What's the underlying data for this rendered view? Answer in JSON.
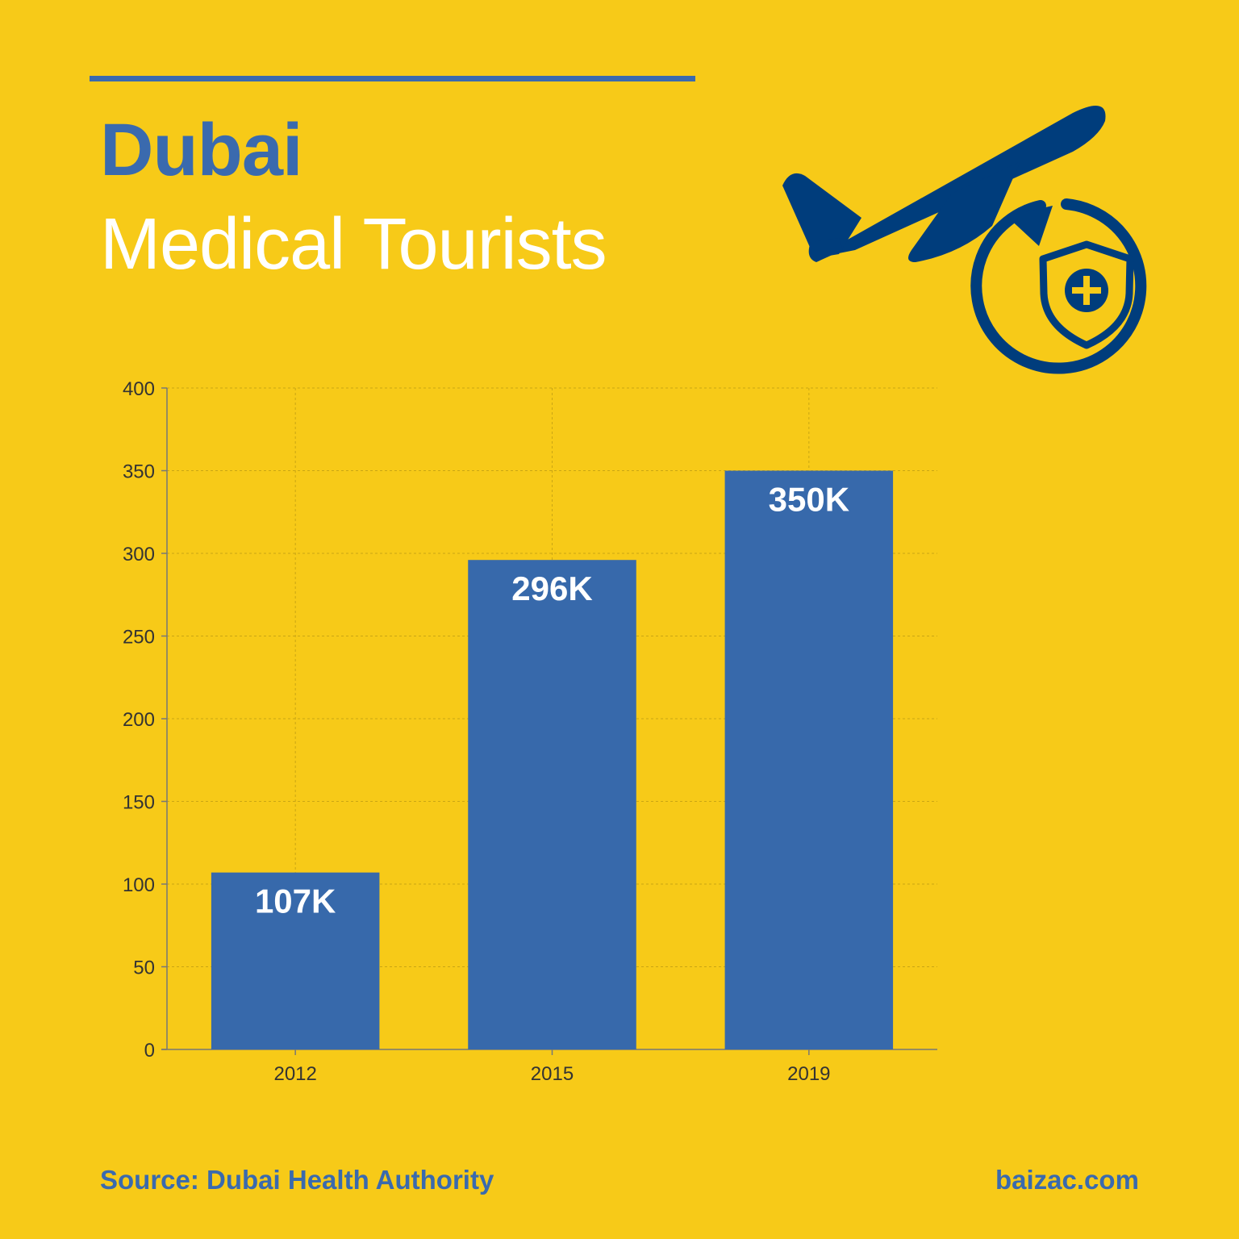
{
  "header": {
    "title": "Dubai",
    "subtitle": "Medical Tourists"
  },
  "footer": {
    "source": "Source: Dubai Health Authority",
    "site": "baizac.com"
  },
  "icons": {
    "plane": "airplane-icon",
    "shield": "medical-shield-icon"
  },
  "colors": {
    "background": "#F7CA18",
    "bar": "#3769AB",
    "accent": "#3A6AAE",
    "icon": "#003D7C"
  },
  "chart_data": {
    "type": "bar",
    "categories": [
      "2012",
      "2015",
      "2019"
    ],
    "values": [
      107,
      296,
      350
    ],
    "data_labels": [
      "107K",
      "296K",
      "350K"
    ],
    "ylim": [
      0,
      400
    ],
    "yticks": [
      0,
      50,
      100,
      150,
      200,
      250,
      300,
      350,
      400
    ],
    "ytick_labels": [
      "0",
      "50",
      "100",
      "150",
      "200",
      "250",
      "300",
      "350",
      "400"
    ],
    "grid": true,
    "title": "",
    "xlabel": "",
    "ylabel": ""
  }
}
